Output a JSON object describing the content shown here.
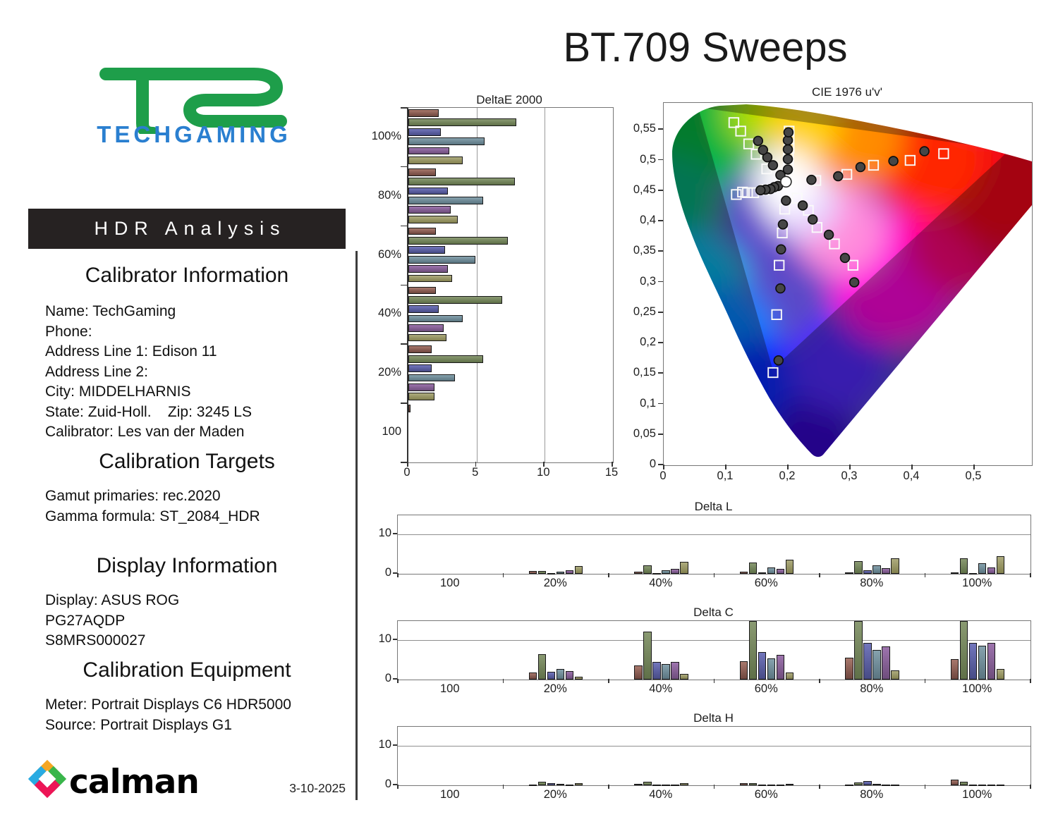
{
  "report": {
    "title": "BT.709 Sweeps",
    "date": "3-10-2025"
  },
  "sidebar": {
    "logo_text": "TECHGAMING",
    "banner": "HDR Analysis",
    "sections": [
      {
        "heading": "Calibrator Information",
        "lines": [
          "Name: TechGaming",
          "Phone:",
          "Address Line 1: Edison 11",
          "Address Line 2:",
          "City: MIDDELHARNIS",
          "State: Zuid-Holl.    Zip: 3245 LS",
          "Calibrator: Les van der Maden"
        ]
      },
      {
        "heading": "Calibration Targets",
        "lines": [
          "Gamut primaries: rec.2020",
          "Gamma formula: ST_2084_HDR"
        ]
      },
      {
        "heading": "Display Information",
        "lines": [
          "Display: ASUS ROG",
          "PG27AQDP",
          "S8MRS000027"
        ]
      },
      {
        "heading": "Calibration Equipment",
        "lines": [
          "Meter: Portrait Displays C6 HDR5000",
          "Source: Portrait Displays G1"
        ]
      }
    ],
    "footer_logo": "calman"
  },
  "colors": {
    "accent_green": "#1e9e4a",
    "accent_blue": "#2a7fd0",
    "banner_bg": "#262222",
    "series": [
      {
        "name": "Red",
        "light": "#a8786c",
        "dark": "#6e463e"
      },
      {
        "name": "Green",
        "light": "#8a9a72",
        "dark": "#5f7048"
      },
      {
        "name": "Blue",
        "light": "#7276bc",
        "dark": "#474b86"
      },
      {
        "name": "Cyan",
        "light": "#86a2ae",
        "dark": "#5a7580"
      },
      {
        "name": "Magenta",
        "light": "#9d74ad",
        "dark": "#6e4d7c"
      },
      {
        "name": "Yellow",
        "light": "#aeac7e",
        "dark": "#83814f"
      }
    ],
    "target_marker": "#fafafa",
    "measured_marker": "#464646"
  },
  "chart_data": [
    {
      "type": "bar",
      "orientation": "horizontal",
      "title": "DeltaE 2000",
      "categories": [
        "100%",
        "80%",
        "60%",
        "40%",
        "20%",
        "100"
      ],
      "series": [
        {
          "name": "Red",
          "values": [
            2.2,
            2.0,
            2.0,
            2.0,
            1.7,
            0.15
          ]
        },
        {
          "name": "Green",
          "values": [
            7.9,
            7.8,
            7.3,
            6.9,
            5.5,
            0
          ]
        },
        {
          "name": "Blue",
          "values": [
            2.4,
            2.9,
            2.7,
            2.2,
            1.7,
            0
          ]
        },
        {
          "name": "Cyan",
          "values": [
            5.6,
            5.5,
            4.9,
            4.0,
            3.4,
            0
          ]
        },
        {
          "name": "Magenta",
          "values": [
            3.0,
            3.1,
            2.9,
            2.6,
            1.9,
            0
          ]
        },
        {
          "name": "Yellow",
          "values": [
            4.0,
            3.6,
            3.2,
            2.8,
            1.9,
            0
          ]
        }
      ],
      "xlim": [
        0,
        15
      ],
      "xticks": [
        "0",
        "5",
        "10",
        "15"
      ],
      "grid": true
    },
    {
      "type": "scatter",
      "title": "CIE 1976 u'v'",
      "xticks": [
        "0",
        "0,1",
        "0,2",
        "0,3",
        "0,4",
        "0,5"
      ],
      "yticks": [
        "0",
        "0,05",
        "0,1",
        "0,15",
        "0,2",
        "0,25",
        "0,3",
        "0,35",
        "0,4",
        "0,45",
        "0,5",
        "0,55"
      ],
      "xlim": [
        0,
        0.593
      ],
      "ylim": [
        0,
        0.594
      ],
      "white_point": [
        0.197,
        0.465
      ],
      "gamut_2020_triangle": [
        [
          0.0556,
          0.5868
        ],
        [
          0.5566,
          0.5165
        ],
        [
          0.1754,
          0.1579
        ]
      ],
      "sweeps": [
        {
          "name": "Red",
          "targets": [
            [
              0.245,
              0.467
            ],
            [
              0.295,
              0.477
            ],
            [
              0.338,
              0.492
            ],
            [
              0.397,
              0.5
            ],
            [
              0.451,
              0.511
            ]
          ],
          "measured": [
            [
              0.238,
              0.468
            ],
            [
              0.281,
              0.474
            ],
            [
              0.317,
              0.489
            ],
            [
              0.37,
              0.499
            ],
            [
              0.42,
              0.515
            ]
          ]
        },
        {
          "name": "Green",
          "targets": [
            [
              0.166,
              0.486
            ],
            [
              0.149,
              0.51
            ],
            [
              0.137,
              0.527
            ],
            [
              0.124,
              0.548
            ],
            [
              0.113,
              0.562
            ]
          ],
          "measured": [
            [
              0.188,
              0.476
            ],
            [
              0.176,
              0.492
            ],
            [
              0.167,
              0.505
            ],
            [
              0.16,
              0.517
            ],
            [
              0.152,
              0.532
            ]
          ]
        },
        {
          "name": "Blue",
          "targets": [
            [
              0.195,
              0.42
            ],
            [
              0.191,
              0.381
            ],
            [
              0.186,
              0.328
            ],
            [
              0.182,
              0.247
            ],
            [
              0.176,
              0.152
            ]
          ],
          "measured": [
            [
              0.197,
              0.434
            ],
            [
              0.192,
              0.395
            ],
            [
              0.189,
              0.354
            ],
            [
              0.188,
              0.29
            ],
            [
              0.185,
              0.172
            ]
          ]
        },
        {
          "name": "Cyan",
          "targets": [
            [
              0.163,
              0.452
            ],
            [
              0.145,
              0.447
            ],
            [
              0.135,
              0.447
            ],
            [
              0.127,
              0.448
            ],
            [
              0.117,
              0.444
            ]
          ],
          "measured": [
            [
              0.184,
              0.458
            ],
            [
              0.178,
              0.456
            ],
            [
              0.172,
              0.453
            ],
            [
              0.164,
              0.452
            ],
            [
              0.156,
              0.451
            ]
          ]
        },
        {
          "name": "Magenta",
          "targets": [
            [
              0.215,
              0.438
            ],
            [
              0.233,
              0.418
            ],
            [
              0.247,
              0.39
            ],
            [
              0.275,
              0.363
            ],
            [
              0.305,
              0.328
            ]
          ],
          "measured": [
            [
              0.224,
              0.426
            ],
            [
              0.24,
              0.403
            ],
            [
              0.266,
              0.378
            ],
            [
              0.292,
              0.34
            ],
            [
              0.307,
              0.3
            ]
          ]
        },
        {
          "name": "Yellow",
          "targets": [
            [
              0.201,
              0.487
            ],
            [
              0.201,
              0.504
            ],
            [
              0.202,
              0.52
            ],
            [
              0.202,
              0.535
            ],
            [
              0.202,
              0.548
            ]
          ],
          "measured": [
            [
              0.2,
              0.485
            ],
            [
              0.2,
              0.502
            ],
            [
              0.2,
              0.518
            ],
            [
              0.2,
              0.533
            ],
            [
              0.201,
              0.546
            ]
          ]
        }
      ]
    },
    {
      "type": "bar",
      "title": "Delta L",
      "categories": [
        "100",
        "20%",
        "40%",
        "60%",
        "80%",
        "100%"
      ],
      "series": [
        {
          "name": "Red",
          "values": [
            0,
            0.8,
            0.6,
            0.6,
            0.4,
            0.3
          ]
        },
        {
          "name": "Green",
          "values": [
            0,
            0.8,
            2.2,
            2.8,
            3.2,
            4.0
          ]
        },
        {
          "name": "Blue",
          "values": [
            0,
            0.2,
            0.2,
            0.4,
            0.9,
            0.2
          ]
        },
        {
          "name": "Cyan",
          "values": [
            0,
            0.6,
            0.9,
            1.6,
            2.2,
            2.7
          ]
        },
        {
          "name": "Magenta",
          "values": [
            0,
            0.9,
            1.2,
            1.2,
            1.5,
            1.6
          ]
        },
        {
          "name": "Yellow",
          "values": [
            0,
            1.9,
            3.0,
            3.5,
            4.0,
            4.5
          ]
        }
      ],
      "ylim": [
        0,
        14.8
      ],
      "yticks": [
        "0",
        "10"
      ]
    },
    {
      "type": "bar",
      "title": "Delta C",
      "categories": [
        "100",
        "20%",
        "40%",
        "60%",
        "80%",
        "100%"
      ],
      "series": [
        {
          "name": "Red",
          "values": [
            0,
            1.8,
            3.5,
            4.7,
            5.5,
            5.2
          ]
        },
        {
          "name": "Green",
          "values": [
            0,
            6.5,
            12.2,
            15,
            15,
            15
          ]
        },
        {
          "name": "Blue",
          "values": [
            0,
            2.0,
            4.4,
            7.0,
            9.3,
            9.3
          ]
        },
        {
          "name": "Cyan",
          "values": [
            0,
            2.6,
            3.9,
            5.4,
            7.5,
            8.6
          ]
        },
        {
          "name": "Magenta",
          "values": [
            0,
            2.2,
            4.5,
            6.2,
            8.3,
            9.2
          ]
        },
        {
          "name": "Yellow",
          "values": [
            0,
            0.7,
            1.4,
            1.7,
            2.4,
            2.7
          ]
        }
      ],
      "ylim": [
        0,
        14.8
      ],
      "yticks": [
        "0",
        "10"
      ]
    },
    {
      "type": "bar",
      "title": "Delta H",
      "categories": [
        "100",
        "20%",
        "40%",
        "60%",
        "80%",
        "100%"
      ],
      "series": [
        {
          "name": "Red",
          "values": [
            0,
            0.1,
            0.4,
            0.6,
            0.1,
            1.5
          ]
        },
        {
          "name": "Green",
          "values": [
            0,
            0.9,
            0.9,
            0.6,
            0.7,
            0.9
          ]
        },
        {
          "name": "Blue",
          "values": [
            0,
            0.6,
            0.1,
            0.1,
            1.0,
            0.1
          ]
        },
        {
          "name": "Cyan",
          "values": [
            0,
            0.3,
            0.1,
            0.05,
            0.4,
            0.1
          ]
        },
        {
          "name": "Magenta",
          "values": [
            0,
            0.1,
            0.1,
            0.1,
            0.1,
            0.05
          ]
        },
        {
          "name": "Yellow",
          "values": [
            0,
            0.5,
            0.6,
            0.3,
            0.1,
            0.1
          ]
        }
      ],
      "ylim": [
        0,
        14.8
      ],
      "yticks": [
        "0",
        "10"
      ]
    }
  ]
}
